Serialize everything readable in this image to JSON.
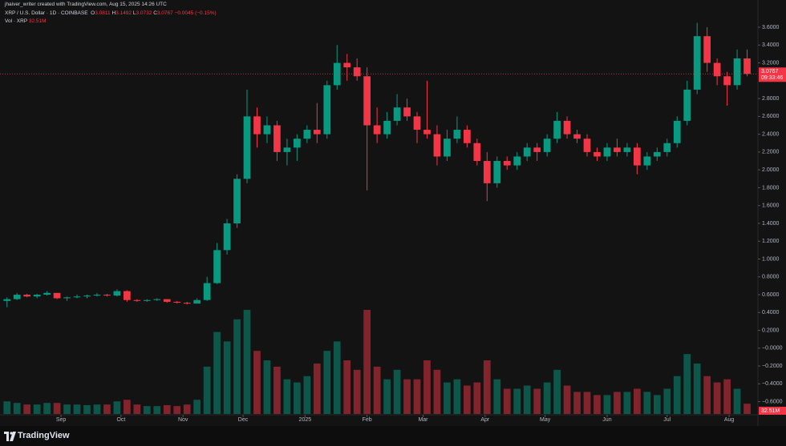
{
  "chart_data": {
    "type": "candlestick",
    "credit": "jhaiver_writer created with TradingView.com, Aug 15, 2025 14:26 UTC",
    "symbol": "XRP / U.S. Dollar · 1D · COINBASE",
    "quote": [
      {
        "label": "O",
        "value": 3.0811
      },
      {
        "label": "H",
        "value": 3.1492
      },
      {
        "label": "L",
        "value": 3.0732
      },
      {
        "label": "C",
        "value": 3.0767
      }
    ],
    "change": {
      "value": -0.0045,
      "label": "−0.0045"
    },
    "change_pct": {
      "value": -0.15,
      "label": "(−0.15%)"
    },
    "volume_name": "Vol · XRP",
    "volume_label": "32.51M",
    "last_price": 3.0767,
    "countdown": "09:33:46",
    "watermark": "TradingView",
    "up_color": "#089981",
    "down_color": "#f23645",
    "grid": false,
    "xlim": [
      -3.5,
      375.4
    ],
    "xticks": [
      {
        "value": 27,
        "label": "Sep"
      },
      {
        "value": 57,
        "label": "Oct"
      },
      {
        "value": 88,
        "label": "Nov"
      },
      {
        "value": 118,
        "label": "Dec"
      },
      {
        "value": 149,
        "label": "2025"
      },
      {
        "value": 180,
        "label": "Feb"
      },
      {
        "value": 208,
        "label": "Mar"
      },
      {
        "value": 239,
        "label": "Apr"
      },
      {
        "value": 269,
        "label": "May"
      },
      {
        "value": 300,
        "label": "Jun"
      },
      {
        "value": 330,
        "label": "Jul"
      },
      {
        "value": 361,
        "label": "Aug"
      }
    ],
    "ylim": [
      -0.738,
      3.9055
    ],
    "yticks": [
      {
        "value": 3.6,
        "label": "3.6000"
      },
      {
        "value": 3.4,
        "label": "3.4000"
      },
      {
        "value": 3.2,
        "label": "3.2000"
      },
      {
        "value": 2.8,
        "label": "2.8000"
      },
      {
        "value": 2.6,
        "label": "2.6000"
      },
      {
        "value": 2.4,
        "label": "2.4000"
      },
      {
        "value": 2.2,
        "label": "2.2000"
      },
      {
        "value": 2.0,
        "label": "2.0000"
      },
      {
        "value": 1.8,
        "label": "1.8000"
      },
      {
        "value": 1.6,
        "label": "1.6000"
      },
      {
        "value": 1.4,
        "label": "1.4000"
      },
      {
        "value": 1.2,
        "label": "1.2000"
      },
      {
        "value": 1.0,
        "label": "1.0000"
      },
      {
        "value": 0.8,
        "label": "0.8000"
      },
      {
        "value": 0.6,
        "label": "0.6000"
      },
      {
        "value": 0.4,
        "label": "0.4000"
      },
      {
        "value": 0.2,
        "label": "0.2000"
      },
      {
        "value": 0,
        "label": "−0.0000"
      },
      {
        "value": -0.2,
        "label": "−0.2000"
      },
      {
        "value": -0.4,
        "label": "−0.4000"
      },
      {
        "value": -0.6,
        "label": "−0.6000"
      }
    ],
    "x": [
      0,
      5,
      10,
      15,
      20,
      25,
      30,
      35,
      40,
      45,
      50,
      55,
      60,
      65,
      70,
      75,
      80,
      85,
      90,
      95,
      100,
      105,
      110,
      115,
      120,
      125,
      130,
      135,
      140,
      145,
      150,
      155,
      160,
      165,
      170,
      175,
      180,
      185,
      190,
      195,
      200,
      205,
      210,
      215,
      220,
      225,
      230,
      235,
      240,
      245,
      250,
      255,
      260,
      265,
      270,
      275,
      280,
      285,
      290,
      295,
      300,
      305,
      310,
      315,
      320,
      325,
      330,
      335,
      340,
      345,
      350,
      355,
      360,
      365,
      370
    ],
    "open": [
      0.53,
      0.55,
      0.6,
      0.58,
      0.6,
      0.62,
      0.56,
      0.57,
      0.58,
      0.59,
      0.6,
      0.59,
      0.64,
      0.54,
      0.53,
      0.54,
      0.55,
      0.52,
      0.51,
      0.5,
      0.54,
      0.73,
      1.1,
      1.4,
      1.9,
      2.6,
      2.4,
      2.5,
      2.2,
      2.25,
      2.35,
      2.45,
      2.4,
      2.95,
      3.2,
      3.15,
      3.05,
      2.5,
      2.4,
      2.55,
      2.7,
      2.6,
      2.45,
      2.4,
      2.15,
      2.35,
      2.45,
      2.3,
      2.1,
      1.85,
      2.1,
      2.05,
      2.15,
      2.25,
      2.2,
      2.35,
      2.55,
      2.4,
      2.35,
      2.2,
      2.15,
      2.25,
      2.2,
      2.25,
      2.05,
      2.15,
      2.2,
      2.3,
      2.55,
      2.9,
      3.5,
      3.2,
      3.05,
      2.95,
      3.25
    ],
    "high": [
      0.57,
      0.62,
      0.61,
      0.61,
      0.64,
      0.62,
      0.58,
      0.6,
      0.6,
      0.62,
      0.61,
      0.66,
      0.65,
      0.55,
      0.55,
      0.56,
      0.55,
      0.53,
      0.52,
      0.56,
      0.8,
      1.18,
      1.45,
      1.95,
      2.9,
      2.7,
      2.6,
      2.55,
      2.35,
      2.4,
      2.5,
      2.75,
      3.0,
      3.4,
      3.3,
      3.25,
      3.15,
      2.7,
      2.65,
      2.85,
      2.8,
      2.65,
      3.0,
      2.5,
      2.45,
      2.6,
      2.5,
      2.35,
      2.2,
      2.15,
      2.15,
      2.2,
      2.3,
      2.3,
      2.4,
      2.65,
      2.6,
      2.45,
      2.4,
      2.25,
      2.3,
      2.35,
      2.3,
      2.3,
      2.2,
      2.25,
      2.35,
      2.6,
      3.0,
      3.65,
      3.6,
      3.25,
      3.1,
      3.35,
      3.35
    ],
    "low": [
      0.46,
      0.54,
      0.57,
      0.56,
      0.59,
      0.55,
      0.53,
      0.56,
      0.56,
      0.58,
      0.58,
      0.58,
      0.52,
      0.52,
      0.52,
      0.53,
      0.51,
      0.5,
      0.49,
      0.5,
      0.53,
      0.72,
      1.05,
      1.35,
      1.85,
      2.25,
      2.3,
      2.1,
      2.05,
      2.1,
      2.3,
      2.3,
      2.35,
      2.9,
      3.0,
      3.0,
      1.77,
      2.3,
      2.35,
      2.5,
      2.55,
      2.3,
      2.35,
      2.05,
      2.1,
      2.3,
      2.25,
      2.05,
      1.65,
      1.8,
      2.0,
      2.0,
      2.1,
      2.1,
      2.15,
      2.3,
      2.35,
      2.3,
      2.15,
      2.1,
      2.1,
      2.15,
      2.15,
      1.95,
      2.0,
      2.1,
      2.15,
      2.25,
      2.5,
      2.85,
      3.1,
      2.95,
      2.72,
      2.9,
      3.05
    ],
    "close": [
      0.55,
      0.6,
      0.58,
      0.6,
      0.62,
      0.56,
      0.57,
      0.58,
      0.59,
      0.6,
      0.59,
      0.64,
      0.54,
      0.53,
      0.54,
      0.55,
      0.52,
      0.51,
      0.5,
      0.54,
      0.73,
      1.1,
      1.4,
      1.9,
      2.6,
      2.4,
      2.5,
      2.2,
      2.25,
      2.35,
      2.45,
      2.4,
      2.95,
      3.2,
      3.15,
      3.05,
      2.5,
      2.4,
      2.55,
      2.7,
      2.6,
      2.45,
      2.4,
      2.15,
      2.35,
      2.45,
      2.3,
      2.1,
      1.85,
      2.1,
      2.05,
      2.15,
      2.25,
      2.2,
      2.35,
      2.55,
      2.4,
      2.35,
      2.2,
      2.15,
      2.25,
      2.2,
      2.25,
      2.05,
      2.15,
      2.2,
      2.3,
      2.55,
      2.9,
      3.5,
      3.2,
      3.05,
      2.95,
      3.25,
      3.0767
    ],
    "volume": [
      40,
      35,
      30,
      30,
      35,
      35,
      30,
      30,
      28,
      30,
      30,
      40,
      45,
      30,
      25,
      25,
      28,
      25,
      30,
      45,
      150,
      260,
      230,
      300,
      330,
      200,
      170,
      150,
      110,
      100,
      120,
      160,
      200,
      230,
      170,
      140,
      330,
      150,
      110,
      140,
      110,
      110,
      170,
      140,
      100,
      110,
      90,
      100,
      170,
      110,
      80,
      80,
      90,
      80,
      100,
      140,
      90,
      70,
      70,
      60,
      60,
      70,
      70,
      80,
      70,
      60,
      80,
      120,
      190,
      160,
      120,
      100,
      110,
      80,
      32.51
    ]
  }
}
